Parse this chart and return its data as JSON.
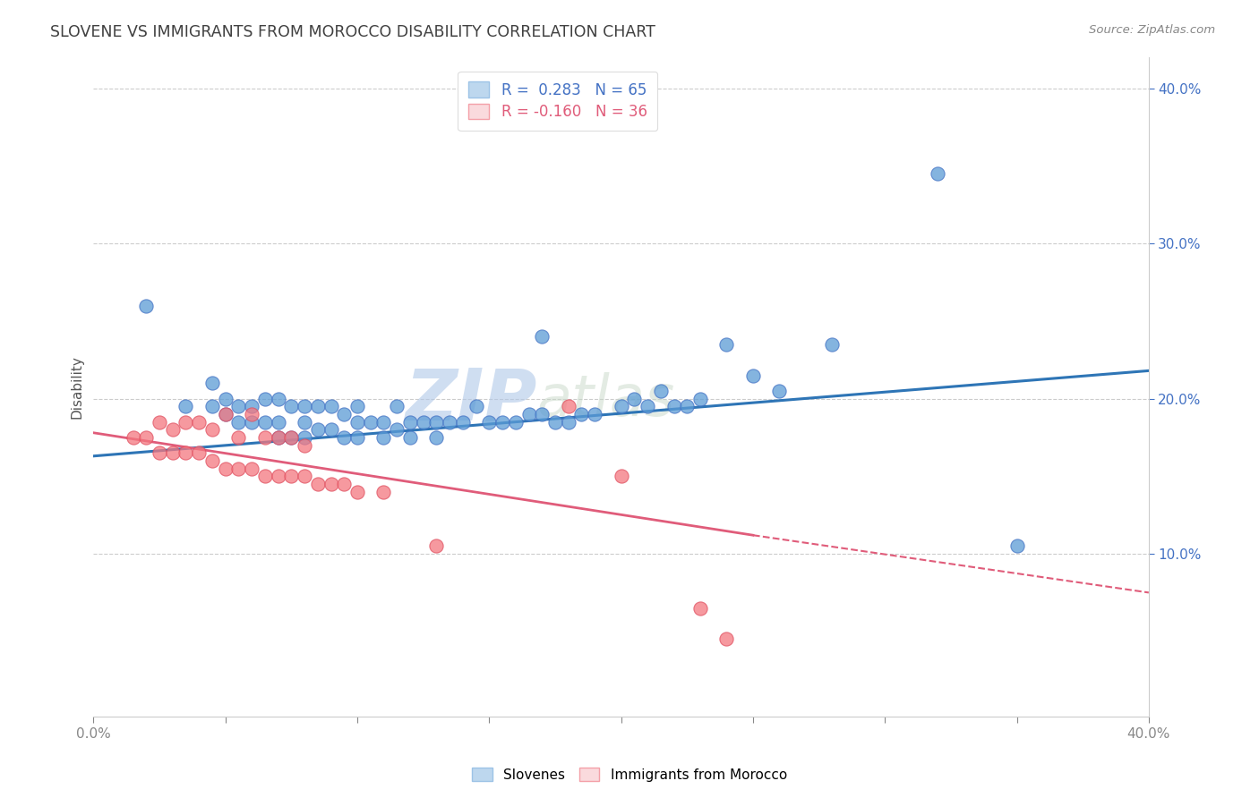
{
  "title": "SLOVENE VS IMMIGRANTS FROM MOROCCO DISABILITY CORRELATION CHART",
  "source_text": "Source: ZipAtlas.com",
  "ylabel": "Disability",
  "xlim": [
    0.0,
    0.4
  ],
  "ylim": [
    -0.005,
    0.42
  ],
  "xticks": [
    0.0,
    0.05,
    0.1,
    0.15,
    0.2,
    0.25,
    0.3,
    0.35,
    0.4
  ],
  "ytick_vals": [
    0.1,
    0.2,
    0.3,
    0.4
  ],
  "ytick_labels": [
    "10.0%",
    "20.0%",
    "30.0%",
    "40.0%"
  ],
  "blue_R": 0.283,
  "blue_N": 65,
  "pink_R": -0.16,
  "pink_N": 36,
  "blue_color": "#5B9BD5",
  "pink_color": "#F4777F",
  "blue_edge": "#4472C4",
  "pink_edge": "#E05060",
  "blue_fill_legend": "#BDD7EE",
  "pink_fill_legend": "#FADADD",
  "legend_label_blue": "Slovenes",
  "legend_label_pink": "Immigrants from Morocco",
  "watermark": "ZIPatlas",
  "blue_scatter_x": [
    0.02,
    0.035,
    0.045,
    0.045,
    0.05,
    0.05,
    0.055,
    0.055,
    0.06,
    0.06,
    0.065,
    0.065,
    0.07,
    0.07,
    0.07,
    0.075,
    0.075,
    0.08,
    0.08,
    0.08,
    0.085,
    0.085,
    0.09,
    0.09,
    0.095,
    0.095,
    0.1,
    0.1,
    0.1,
    0.105,
    0.11,
    0.11,
    0.115,
    0.115,
    0.12,
    0.12,
    0.125,
    0.13,
    0.13,
    0.135,
    0.14,
    0.145,
    0.15,
    0.155,
    0.16,
    0.165,
    0.17,
    0.175,
    0.18,
    0.185,
    0.19,
    0.2,
    0.205,
    0.21,
    0.215,
    0.22,
    0.225,
    0.23,
    0.24,
    0.25,
    0.26,
    0.28,
    0.32,
    0.35,
    0.17
  ],
  "blue_scatter_y": [
    0.26,
    0.195,
    0.195,
    0.21,
    0.19,
    0.2,
    0.185,
    0.195,
    0.185,
    0.195,
    0.185,
    0.2,
    0.175,
    0.185,
    0.2,
    0.175,
    0.195,
    0.175,
    0.185,
    0.195,
    0.18,
    0.195,
    0.18,
    0.195,
    0.175,
    0.19,
    0.175,
    0.185,
    0.195,
    0.185,
    0.175,
    0.185,
    0.18,
    0.195,
    0.175,
    0.185,
    0.185,
    0.175,
    0.185,
    0.185,
    0.185,
    0.195,
    0.185,
    0.185,
    0.185,
    0.19,
    0.19,
    0.185,
    0.185,
    0.19,
    0.19,
    0.195,
    0.2,
    0.195,
    0.205,
    0.195,
    0.195,
    0.2,
    0.235,
    0.215,
    0.205,
    0.235,
    0.345,
    0.105,
    0.24
  ],
  "pink_scatter_x": [
    0.015,
    0.02,
    0.025,
    0.025,
    0.03,
    0.03,
    0.035,
    0.035,
    0.04,
    0.04,
    0.045,
    0.045,
    0.05,
    0.05,
    0.055,
    0.055,
    0.06,
    0.06,
    0.065,
    0.065,
    0.07,
    0.07,
    0.075,
    0.075,
    0.08,
    0.08,
    0.085,
    0.09,
    0.095,
    0.1,
    0.11,
    0.13,
    0.18,
    0.2,
    0.23,
    0.24
  ],
  "pink_scatter_y": [
    0.175,
    0.175,
    0.165,
    0.185,
    0.165,
    0.18,
    0.165,
    0.185,
    0.165,
    0.185,
    0.16,
    0.18,
    0.155,
    0.19,
    0.155,
    0.175,
    0.155,
    0.19,
    0.15,
    0.175,
    0.15,
    0.175,
    0.15,
    0.175,
    0.15,
    0.17,
    0.145,
    0.145,
    0.145,
    0.14,
    0.14,
    0.105,
    0.195,
    0.15,
    0.065,
    0.045
  ],
  "blue_trend": [
    0.0,
    0.4,
    0.163,
    0.218
  ],
  "pink_trend_solid": [
    0.0,
    0.25,
    0.178,
    0.112
  ],
  "pink_trend_dashed": [
    0.25,
    0.4,
    0.112,
    0.075
  ]
}
